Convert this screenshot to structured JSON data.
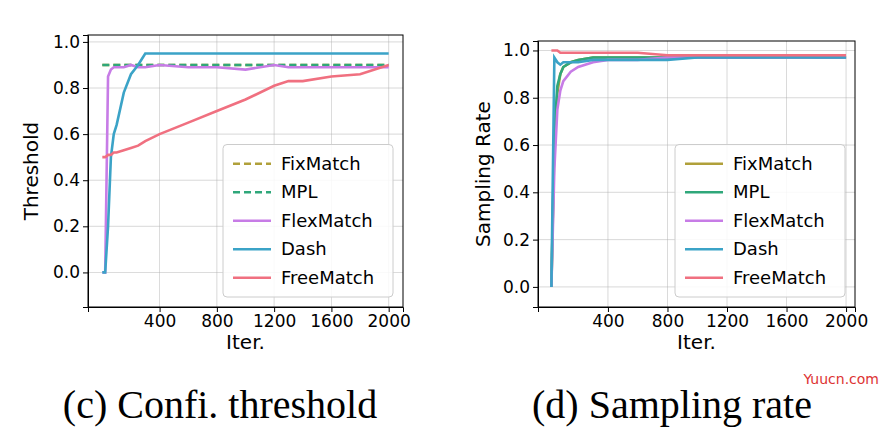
{
  "chart_data": [
    {
      "type": "line",
      "title": "(c) Confi. threshold",
      "x_label": "Iter.",
      "y_label": "Threshold",
      "x": [
        0,
        20,
        40,
        60,
        80,
        100,
        150,
        200,
        250,
        300,
        400,
        600,
        800,
        1000,
        1200,
        1300,
        1400,
        1600,
        1800,
        2000
      ],
      "series": [
        {
          "name": "FixMatch",
          "color": "#b0a03a",
          "line_style": "dashed",
          "values": [
            0.9,
            0.9,
            0.9,
            0.9,
            0.9,
            0.9,
            0.9,
            0.9,
            0.9,
            0.9,
            0.9,
            0.9,
            0.9,
            0.9,
            0.9,
            0.9,
            0.9,
            0.9,
            0.9,
            0.9
          ]
        },
        {
          "name": "MPL",
          "color": "#2fa77a",
          "line_style": "dashed",
          "values": [
            0.9,
            0.9,
            0.9,
            0.9,
            0.9,
            0.9,
            0.9,
            0.9,
            0.9,
            0.9,
            0.9,
            0.9,
            0.9,
            0.9,
            0.9,
            0.9,
            0.9,
            0.9,
            0.9,
            0.9
          ]
        },
        {
          "name": "FlexMatch",
          "color": "#c77ce6",
          "line_style": "solid",
          "values": [
            0,
            0,
            0.85,
            0.88,
            0.89,
            0.89,
            0.89,
            0.9,
            0.89,
            0.89,
            0.9,
            0.89,
            0.89,
            0.88,
            0.9,
            0.89,
            0.89,
            0.89,
            0.89,
            0.89
          ]
        },
        {
          "name": "Dash",
          "color": "#3ba3c7",
          "line_style": "solid",
          "values": [
            0,
            0,
            0.2,
            0.5,
            0.6,
            0.64,
            0.78,
            0.86,
            0.9,
            0.95,
            0.95,
            0.95,
            0.95,
            0.95,
            0.95,
            0.95,
            0.95,
            0.95,
            0.95,
            0.95
          ]
        },
        {
          "name": "FreeMatch",
          "color": "#f07080",
          "line_style": "solid",
          "values": [
            0.5,
            0.5,
            0.51,
            0.51,
            0.52,
            0.52,
            0.53,
            0.54,
            0.55,
            0.57,
            0.6,
            0.65,
            0.7,
            0.75,
            0.81,
            0.83,
            0.83,
            0.85,
            0.86,
            0.9
          ]
        }
      ],
      "xlim": [
        -100,
        2100
      ],
      "xticks": [
        400,
        800,
        1200,
        1600,
        2000
      ],
      "ylim": [
        -0.15,
        1.03
      ],
      "yticks": [
        {
          "value": 0,
          "label": "0.0"
        },
        0.2,
        0.4,
        0.6,
        0.8,
        {
          "value": 1,
          "label": "1.0"
        }
      ],
      "grid": true,
      "legend": "lower right"
    },
    {
      "type": "line",
      "title": "(d) Sampling rate",
      "x_label": "Iter.",
      "y_label": "Sampling Rate",
      "x": [
        20,
        40,
        60,
        80,
        100,
        150,
        200,
        300,
        400,
        600,
        800,
        1000,
        1200,
        1400,
        1600,
        1800,
        2000
      ],
      "series": [
        {
          "name": "FixMatch",
          "color": "#b0a03a",
          "line_style": "solid",
          "values": [
            0,
            0.6,
            0.82,
            0.9,
            0.93,
            0.95,
            0.96,
            0.97,
            0.97,
            0.97,
            0.97,
            0.97,
            0.97,
            0.97,
            0.97,
            0.97,
            0.97
          ]
        },
        {
          "name": "MPL",
          "color": "#2fa77a",
          "line_style": "solid",
          "values": [
            0,
            0.65,
            0.85,
            0.9,
            0.93,
            0.95,
            0.96,
            0.97,
            0.97,
            0.97,
            0.97,
            0.97,
            0.97,
            0.97,
            0.98,
            0.97,
            0.97
          ]
        },
        {
          "name": "FlexMatch",
          "color": "#c77ce6",
          "line_style": "solid",
          "values": [
            0,
            0.5,
            0.75,
            0.83,
            0.87,
            0.91,
            0.93,
            0.95,
            0.96,
            0.96,
            0.97,
            0.97,
            0.97,
            0.97,
            0.97,
            0.97,
            0.97
          ]
        },
        {
          "name": "Dash",
          "color": "#3ba3c7",
          "line_style": "solid",
          "values": [
            0,
            0.97,
            0.95,
            0.94,
            0.95,
            0.95,
            0.95,
            0.96,
            0.96,
            0.96,
            0.96,
            0.97,
            0.97,
            0.97,
            0.97,
            0.97,
            0.97
          ]
        },
        {
          "name": "FreeMatch",
          "color": "#f07080",
          "line_style": "solid",
          "values": [
            1,
            1,
            1,
            0.99,
            0.99,
            0.99,
            0.99,
            0.99,
            0.99,
            0.99,
            0.98,
            0.98,
            0.98,
            0.98,
            0.98,
            0.98,
            0.98
          ]
        }
      ],
      "xlim": [
        -70,
        2060
      ],
      "xticks": [
        400,
        800,
        1200,
        1600,
        2000
      ],
      "ylim": [
        -0.085,
        1.04
      ],
      "yticks": [
        {
          "value": 0,
          "label": "0.0"
        },
        0.2,
        0.4,
        0.6,
        0.8,
        {
          "value": 1,
          "label": "1.0"
        }
      ],
      "grid": true,
      "legend": "lower right",
      "annotations": [
        "Yuucn.com"
      ]
    }
  ]
}
